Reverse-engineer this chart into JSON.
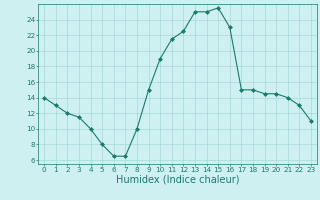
{
  "x": [
    0,
    1,
    2,
    3,
    4,
    5,
    6,
    7,
    8,
    9,
    10,
    11,
    12,
    13,
    14,
    15,
    16,
    17,
    18,
    19,
    20,
    21,
    22,
    23
  ],
  "y": [
    14,
    13,
    12,
    11.5,
    10,
    8,
    6.5,
    6.5,
    10,
    15,
    19,
    21.5,
    22.5,
    25,
    25,
    25.5,
    23,
    15,
    15,
    14.5,
    14.5,
    14,
    13,
    11
  ],
  "line_color": "#1a7a6e",
  "marker": "D",
  "marker_size": 2.0,
  "bg_color": "#cff0f0",
  "grid_color": "#a8d8d8",
  "xlabel": "Humidex (Indice chaleur)",
  "xlim": [
    -0.5,
    23.5
  ],
  "ylim": [
    5.5,
    26
  ],
  "yticks": [
    6,
    8,
    10,
    12,
    14,
    16,
    18,
    20,
    22,
    24
  ],
  "xticks": [
    0,
    1,
    2,
    3,
    4,
    5,
    6,
    7,
    8,
    9,
    10,
    11,
    12,
    13,
    14,
    15,
    16,
    17,
    18,
    19,
    20,
    21,
    22,
    23
  ],
  "tick_fontsize": 5.2,
  "xlabel_fontsize": 7.0,
  "line_width": 0.8
}
